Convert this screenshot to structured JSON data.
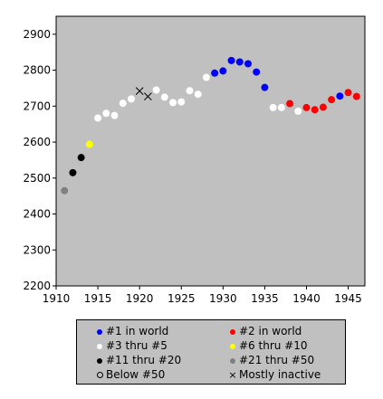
{
  "chart_data": {
    "type": "scatter",
    "xlim": [
      1910,
      1947
    ],
    "ylim": [
      2200,
      2950
    ],
    "x_ticks": [
      1910,
      1915,
      1920,
      1925,
      1930,
      1935,
      1940,
      1945
    ],
    "y_ticks": [
      2200,
      2300,
      2400,
      2500,
      2600,
      2700,
      2800,
      2900
    ],
    "grid": false,
    "background": "#c0c0c0",
    "series": [
      {
        "name": "#1 in world",
        "color": "#0000ff",
        "marker": "dot",
        "points": [
          [
            1929,
            2792
          ],
          [
            1930,
            2798
          ],
          [
            1931,
            2827
          ],
          [
            1932,
            2823
          ],
          [
            1933,
            2818
          ],
          [
            1934,
            2795
          ],
          [
            1935,
            2752
          ],
          [
            1944,
            2728
          ]
        ]
      },
      {
        "name": "#2 in world",
        "color": "#ff0000",
        "marker": "dot",
        "points": [
          [
            1938,
            2707
          ],
          [
            1940,
            2696
          ],
          [
            1941,
            2690
          ],
          [
            1942,
            2697
          ],
          [
            1943,
            2718
          ],
          [
            1945,
            2738
          ],
          [
            1946,
            2727
          ]
        ]
      },
      {
        "name": "#3 thru #5",
        "color": "#ffffff",
        "marker": "dot",
        "points": [
          [
            1915,
            2667
          ],
          [
            1916,
            2680
          ],
          [
            1917,
            2674
          ],
          [
            1918,
            2708
          ],
          [
            1919,
            2720
          ],
          [
            1922,
            2745
          ],
          [
            1923,
            2725
          ],
          [
            1924,
            2710
          ],
          [
            1925,
            2712
          ],
          [
            1926,
            2743
          ],
          [
            1927,
            2733
          ],
          [
            1928,
            2780
          ],
          [
            1936,
            2696
          ],
          [
            1937,
            2696
          ],
          [
            1939,
            2686
          ]
        ]
      },
      {
        "name": "#6 thru #10",
        "color": "#ffff00",
        "marker": "dot",
        "points": [
          [
            1914,
            2594
          ]
        ]
      },
      {
        "name": "#11 thru #20",
        "color": "#000000",
        "marker": "dot",
        "points": [
          [
            1912,
            2515
          ],
          [
            1913,
            2557
          ]
        ]
      },
      {
        "name": "#21 thru #50",
        "color": "#808080",
        "marker": "dot",
        "points": [
          [
            1911,
            2465
          ]
        ]
      },
      {
        "name": "Below #50",
        "color": "#000000",
        "marker": "hollow",
        "points": []
      },
      {
        "name": "Mostly inactive",
        "color": "#000000",
        "marker": "cross",
        "points": [
          [
            1920,
            2742
          ],
          [
            1921,
            2727
          ]
        ]
      }
    ]
  },
  "legend": {
    "items": [
      {
        "label": "#1 in world",
        "symbol": "dot",
        "color": "#0000ff"
      },
      {
        "label": "#2 in world",
        "symbol": "dot",
        "color": "#ff0000"
      },
      {
        "label": "#3 thru #5",
        "symbol": "dot",
        "color": "#ffffff"
      },
      {
        "label": "#6 thru #10",
        "symbol": "dot",
        "color": "#ffff00"
      },
      {
        "label": "#11 thru #20",
        "symbol": "dot",
        "color": "#000000"
      },
      {
        "label": "#21 thru #50",
        "symbol": "dot",
        "color": "#808080"
      },
      {
        "label": "Below #50",
        "symbol": "hollow",
        "color": "#000000"
      },
      {
        "label": "Mostly inactive",
        "symbol": "cross",
        "color": "#000000"
      }
    ]
  }
}
